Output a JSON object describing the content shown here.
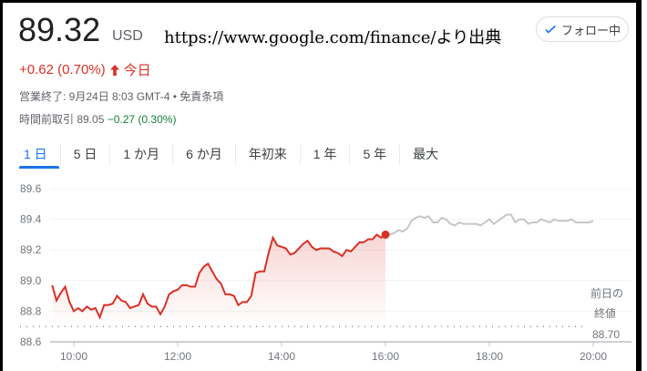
{
  "header": {
    "price": "89.32",
    "currency": "USD",
    "source_note": "https://www.google.com/finance/より出典",
    "follow_label": "フォロー中",
    "change": "+0.62 (0.70%)",
    "change_icon": "arrow-up-icon",
    "change_period": "今日",
    "market_status": "営業終了: 9月24日 8:03 GMT-4 • 免責条項",
    "premarket_label": "時間前取引 89.05",
    "premarket_change": "−0.27 (0.30%)",
    "colors": {
      "up": "#d93025",
      "down": "#188038",
      "accent": "#1a73e8"
    }
  },
  "tabs": [
    {
      "label": "1 日",
      "active": true
    },
    {
      "label": "5 日"
    },
    {
      "label": "1 か月"
    },
    {
      "label": "6 か月"
    },
    {
      "label": "年初来"
    },
    {
      "label": "1 年"
    },
    {
      "label": "5 年"
    },
    {
      "label": "最大"
    }
  ],
  "chart_data": {
    "type": "line",
    "ylim": [
      88.6,
      89.6
    ],
    "yticks": [
      "89.6",
      "89.4",
      "89.2",
      "89.0",
      "88.8",
      "88.6"
    ],
    "xlim": [
      "09:30",
      "20:20"
    ],
    "xticks": [
      "10:00",
      "12:00",
      "14:00",
      "16:00",
      "18:00",
      "20:00"
    ],
    "grid": true,
    "previous_close": {
      "label_line1": "前日の",
      "label_line2": "終値",
      "value": "88.70"
    },
    "series": [
      {
        "color": "#d93025",
        "x": [
          "09:35",
          "09:40",
          "09:45",
          "09:50",
          "09:55",
          "10:00",
          "10:05",
          "10:10",
          "10:15",
          "10:20",
          "10:25",
          "10:30",
          "10:35",
          "10:40",
          "10:45",
          "10:50",
          "10:55",
          "11:00",
          "11:05",
          "11:10",
          "11:15",
          "11:20",
          "11:25",
          "11:30",
          "11:35",
          "11:40",
          "11:45",
          "11:50",
          "11:55",
          "12:00",
          "12:05",
          "12:10",
          "12:15",
          "12:20",
          "12:25",
          "12:30",
          "12:35",
          "12:40",
          "12:45",
          "12:50",
          "12:55",
          "13:00",
          "13:05",
          "13:10",
          "13:15",
          "13:20",
          "13:25",
          "13:30",
          "13:35",
          "13:40",
          "13:45",
          "13:50",
          "13:55",
          "14:00",
          "14:05",
          "14:10",
          "14:15",
          "14:20",
          "14:25",
          "14:30",
          "14:35",
          "14:40",
          "14:45",
          "14:50",
          "14:55",
          "15:00",
          "15:05",
          "15:10",
          "15:15",
          "15:20",
          "15:25",
          "15:30",
          "15:35",
          "15:40",
          "15:45",
          "15:50",
          "15:55",
          "16:00"
        ],
        "y": [
          88.97,
          88.87,
          88.92,
          88.96,
          88.86,
          88.8,
          88.82,
          88.8,
          88.83,
          88.81,
          88.82,
          88.76,
          88.84,
          88.84,
          88.85,
          88.9,
          88.87,
          88.86,
          88.82,
          88.83,
          88.84,
          88.91,
          88.85,
          88.83,
          88.83,
          88.78,
          88.83,
          88.91,
          88.93,
          88.94,
          88.97,
          88.97,
          88.96,
          88.96,
          89.05,
          89.09,
          89.11,
          89.06,
          89.01,
          88.98,
          88.91,
          88.91,
          88.9,
          88.84,
          88.86,
          88.86,
          88.9,
          89.05,
          89.06,
          89.06,
          89.18,
          89.28,
          89.23,
          89.22,
          89.21,
          89.17,
          89.18,
          89.21,
          89.24,
          89.26,
          89.22,
          89.2,
          89.21,
          89.21,
          89.21,
          89.19,
          89.18,
          89.16,
          89.2,
          89.19,
          89.22,
          89.25,
          89.25,
          89.27,
          89.27,
          89.3,
          89.28,
          89.3
        ]
      },
      {
        "color": "#c4c7c5",
        "x": [
          "16:00",
          "16:05",
          "16:10",
          "16:15",
          "16:20",
          "16:25",
          "16:30",
          "16:35",
          "16:40",
          "16:45",
          "16:50",
          "16:55",
          "17:00",
          "17:05",
          "17:10",
          "17:15",
          "17:20",
          "17:25",
          "17:30",
          "17:35",
          "17:40",
          "17:45",
          "17:50",
          "17:55",
          "18:00",
          "18:05",
          "18:10",
          "18:15",
          "18:20",
          "18:25",
          "18:30",
          "18:35",
          "18:40",
          "18:45",
          "18:50",
          "18:55",
          "19:00",
          "19:05",
          "19:10",
          "19:15",
          "19:20",
          "19:25",
          "19:30",
          "19:35",
          "19:40",
          "19:45",
          "19:50",
          "19:55",
          "20:00"
        ],
        "y": [
          89.32,
          89.3,
          89.31,
          89.33,
          89.32,
          89.34,
          89.39,
          89.41,
          89.42,
          89.41,
          89.42,
          89.38,
          89.38,
          89.41,
          89.4,
          89.37,
          89.36,
          89.38,
          89.37,
          89.37,
          89.37,
          89.37,
          89.36,
          89.38,
          89.4,
          89.37,
          89.39,
          89.41,
          89.43,
          89.43,
          89.38,
          89.4,
          89.4,
          89.37,
          89.38,
          89.38,
          89.4,
          89.39,
          89.38,
          89.4,
          89.39,
          89.39,
          89.39,
          89.4,
          89.38,
          89.38,
          89.38,
          89.38,
          89.39
        ]
      }
    ]
  }
}
